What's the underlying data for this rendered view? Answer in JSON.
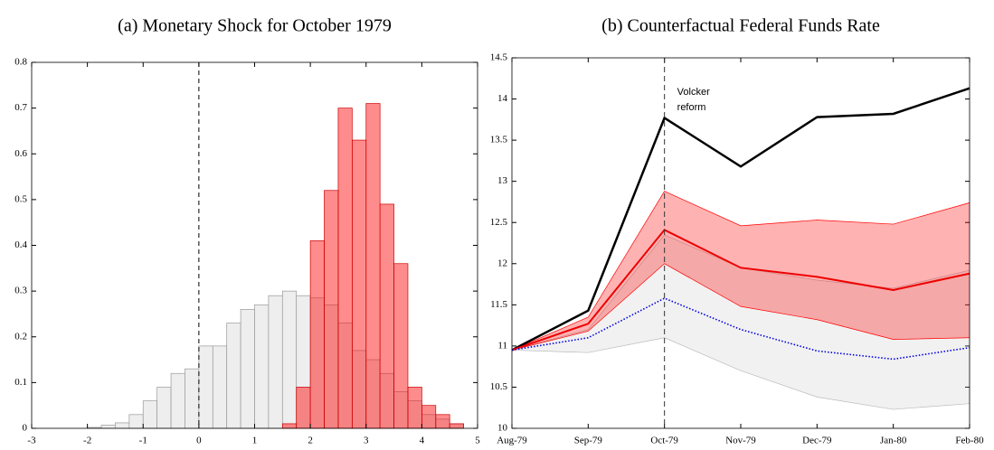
{
  "chart_data": [
    {
      "type": "histogram",
      "title": "(a) Monetary Shock for October 1979",
      "xlim": [
        -3,
        5
      ],
      "xticks": [
        -3,
        -2,
        -1,
        0,
        1,
        2,
        3,
        4,
        5
      ],
      "ylim": [
        0,
        0.8
      ],
      "yticks": [
        0,
        0.1,
        0.2,
        0.3,
        0.4,
        0.5,
        0.6,
        0.7,
        0.8
      ],
      "vline": 0,
      "series": [
        {
          "color": "#eeeeee",
          "edgecolor": "#999999",
          "opacity": 1,
          "bins": [
            -2,
            -1.75,
            -1.5,
            -1.25,
            -1,
            -0.75,
            -0.5,
            -0.25,
            0,
            0.25,
            0.5,
            0.75,
            1,
            1.25,
            1.5,
            1.75,
            2,
            2.25,
            2.5,
            2.75,
            3,
            3.25,
            3.5,
            3.75,
            4,
            4.25,
            4.5,
            4.75
          ],
          "values": [
            0.002,
            0.007,
            0.012,
            0.03,
            0.06,
            0.09,
            0.12,
            0.13,
            0.18,
            0.18,
            0.23,
            0.26,
            0.27,
            0.29,
            0.3,
            0.29,
            0.285,
            0.27,
            0.23,
            0.17,
            0.15,
            0.12,
            0.08,
            0.06,
            0.03,
            0.02,
            0.01
          ]
        },
        {
          "color": "#ff0000",
          "edgecolor": "#cc0000",
          "opacity": 0.45,
          "bins": [
            1.5,
            1.75,
            2,
            2.25,
            2.5,
            2.75,
            3,
            3.25,
            3.5,
            3.75,
            4,
            4.25,
            4.5,
            4.75
          ],
          "values": [
            0.01,
            0.09,
            0.41,
            0.52,
            0.7,
            0.63,
            0.71,
            0.49,
            0.36,
            0.09,
            0.05,
            0.03,
            0.01
          ]
        }
      ]
    },
    {
      "type": "line",
      "title": "(b) Counterfactual Federal Funds Rate",
      "categories": [
        "Aug-79",
        "Sep-79",
        "Oct-79",
        "Nov-79",
        "Dec-79",
        "Jan-80",
        "Feb-80"
      ],
      "ylim": [
        10,
        14.5
      ],
      "yticks": [
        10,
        10.5,
        11,
        11.5,
        12,
        12.5,
        13,
        13.5,
        14,
        14.5
      ],
      "vline": "Oct-79",
      "annotation": [
        "Volcker",
        "reform"
      ],
      "bands": [
        {
          "color": "#bbbbbb",
          "opacity": 0.2,
          "upper": [
            10.95,
            11.2,
            12.35,
            11.95,
            11.8,
            11.7,
            11.92
          ],
          "lower": [
            10.95,
            10.92,
            11.1,
            10.7,
            10.38,
            10.23,
            10.3
          ]
        },
        {
          "color": "#ff0000",
          "opacity": 0.3,
          "upper": [
            10.95,
            11.35,
            12.88,
            12.46,
            12.53,
            12.48,
            12.74
          ],
          "lower": [
            10.95,
            11.18,
            12.0,
            11.48,
            11.32,
            11.08,
            11.1
          ]
        }
      ],
      "series": [
        {
          "color": "#000000",
          "width": 2.5,
          "linestyle": "solid",
          "values": [
            10.95,
            11.43,
            13.77,
            13.18,
            13.78,
            13.82,
            14.13
          ]
        },
        {
          "color": "#ee0000",
          "width": 2,
          "linestyle": "solid",
          "values": [
            10.95,
            11.27,
            12.41,
            11.95,
            11.84,
            11.68,
            11.88
          ]
        },
        {
          "color": "#0000dd",
          "width": 1.6,
          "linestyle": "dotted",
          "values": [
            10.95,
            11.1,
            11.58,
            11.2,
            10.94,
            10.84,
            10.98
          ]
        }
      ]
    }
  ]
}
